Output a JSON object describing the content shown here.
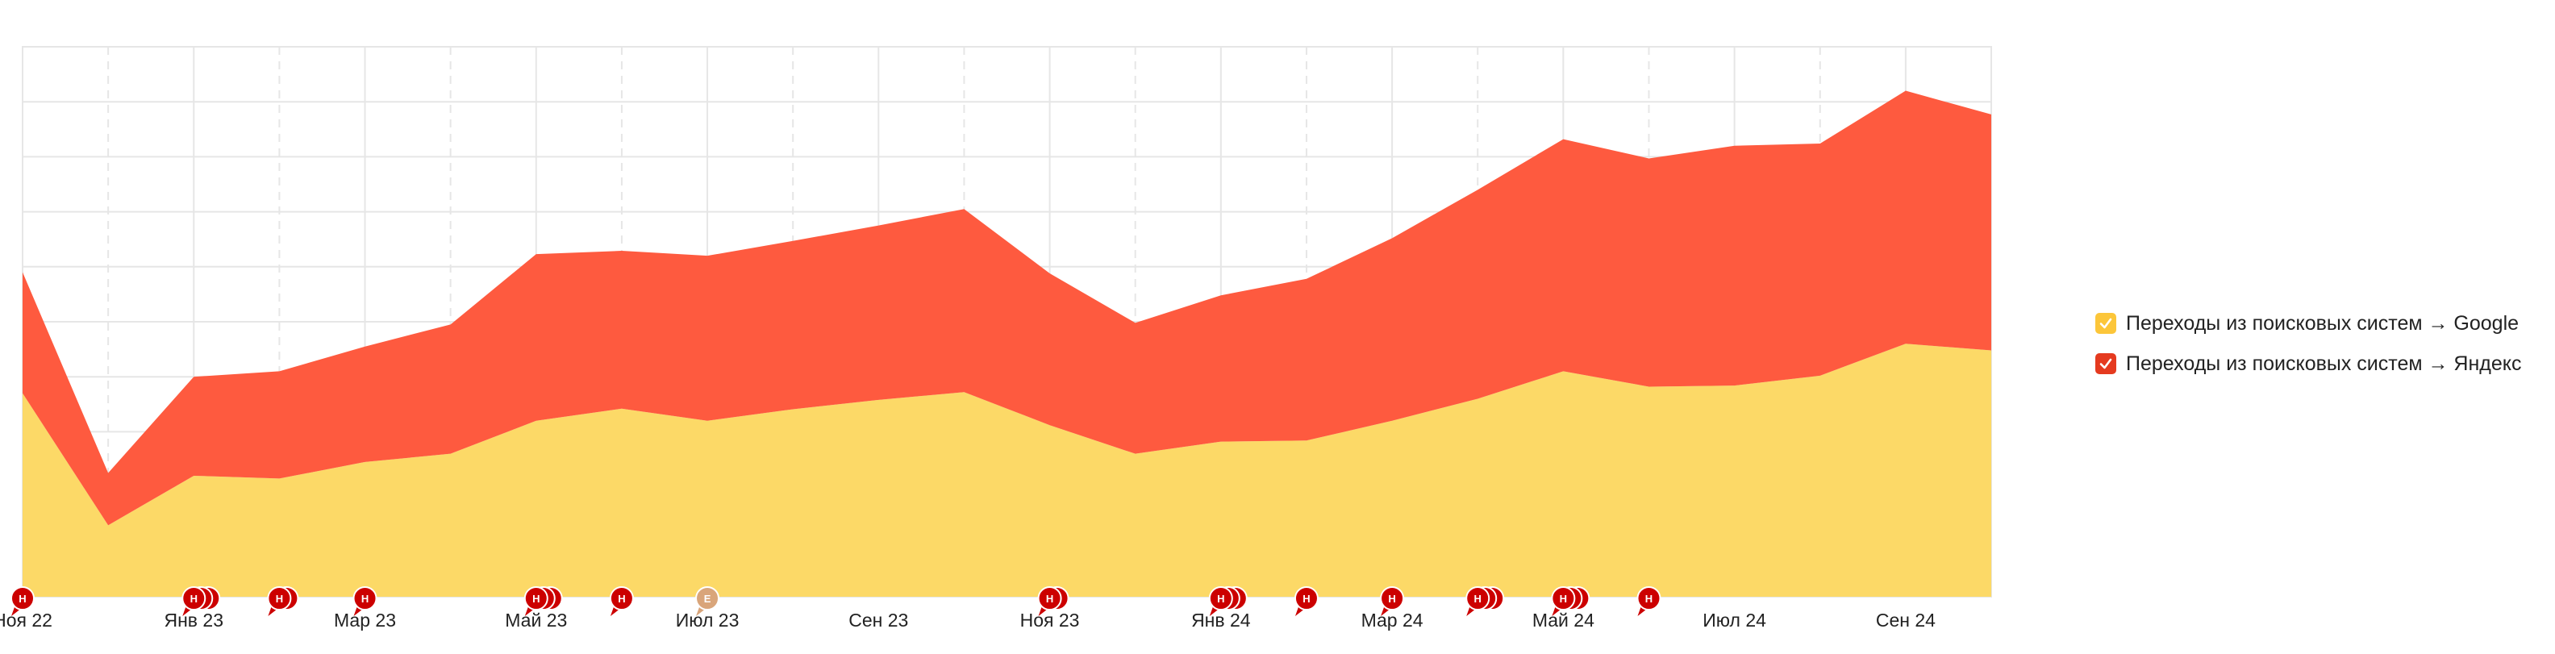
{
  "chart_data": {
    "type": "area",
    "stacked": true,
    "x": [
      "2022-11",
      "2022-12",
      "2023-01",
      "2023-02",
      "2023-03",
      "2023-04",
      "2023-05",
      "2023-06",
      "2023-07",
      "2023-08",
      "2023-09",
      "2023-10",
      "2023-11",
      "2023-12",
      "2024-01",
      "2024-02",
      "2024-03",
      "2024-04",
      "2024-05",
      "2024-06",
      "2024-07",
      "2024-08",
      "2024-09",
      "2024-10"
    ],
    "x_tick_labels": [
      "Ноя 22",
      "Янв 23",
      "Мар 23",
      "Май 23",
      "Июл 23",
      "Сен 23",
      "Ноя 23",
      "Янв 24",
      "Мар 24",
      "Май 24",
      "Июл 24",
      "Сен 24"
    ],
    "series": [
      {
        "name": "Переходы из поисковых систем → Google",
        "color": "#fcd967",
        "values": [
          37,
          13,
          22,
          21.5,
          24.5,
          26,
          32,
          34.2,
          32,
          34.1,
          35.8,
          37.2,
          31.2,
          26,
          28.2,
          28.4,
          32,
          36,
          41,
          38.2,
          38.4,
          40.2,
          46,
          44.8
        ]
      },
      {
        "name": "Переходы из поисковых систем → Яндекс",
        "color": "#fe5a3f",
        "values": [
          22,
          9.5,
          18,
          19.5,
          21,
          23.5,
          30.3,
          28.7,
          30,
          30.6,
          31.7,
          33.3,
          27.6,
          23.8,
          26.6,
          29.4,
          33.2,
          38,
          42.2,
          41.5,
          43.6,
          42.2,
          46,
          42.9
        ]
      }
    ],
    "ylim": [
      0,
      100
    ],
    "grid": true,
    "legend_position": "right",
    "events": [
      {
        "x": 0,
        "letter": "Н",
        "count": 1,
        "color": "#cc0000"
      },
      {
        "x": 2,
        "letter": "Н",
        "count": 3,
        "color": "#cc0000"
      },
      {
        "x": 3,
        "letter": "Н",
        "count": 2,
        "color": "#cc0000"
      },
      {
        "x": 4,
        "letter": "Н",
        "count": 1,
        "color": "#cc0000"
      },
      {
        "x": 6,
        "letter": "Н",
        "count": 3,
        "color": "#cc0000"
      },
      {
        "x": 7,
        "letter": "Н",
        "count": 1,
        "color": "#cc0000"
      },
      {
        "x": 8,
        "letter": "Е",
        "count": 1,
        "color": "#d9a57a"
      },
      {
        "x": 12,
        "letter": "Н",
        "count": 2,
        "color": "#cc0000"
      },
      {
        "x": 14,
        "letter": "Н",
        "count": 3,
        "color": "#cc0000"
      },
      {
        "x": 15,
        "letter": "Н",
        "count": 1,
        "color": "#cc0000"
      },
      {
        "x": 16,
        "letter": "Н",
        "count": 1,
        "color": "#cc0000"
      },
      {
        "x": 17,
        "letter": "Н",
        "count": 3,
        "color": "#cc0000"
      },
      {
        "x": 18,
        "letter": "Н",
        "count": 3,
        "color": "#cc0000"
      },
      {
        "x": 19,
        "letter": "Н",
        "count": 1,
        "color": "#cc0000"
      }
    ]
  },
  "legend": {
    "items": [
      {
        "label": "Переходы из поисковых систем → Google",
        "color": "#fcc63a",
        "checked": true
      },
      {
        "label": "Переходы из поисковых систем → Яндекс",
        "color": "#e53a1f",
        "checked": true
      }
    ]
  }
}
